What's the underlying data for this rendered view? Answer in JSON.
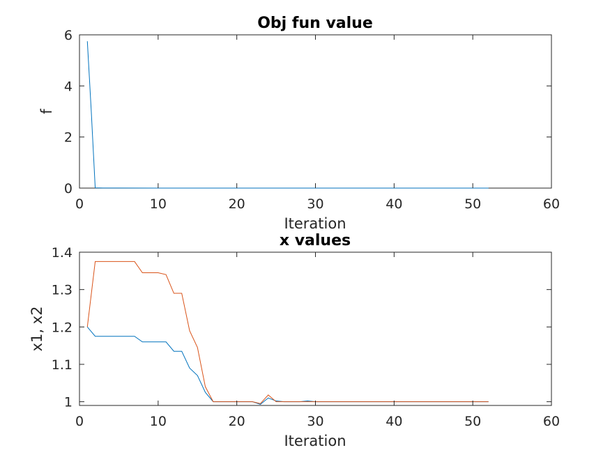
{
  "chart_data": [
    {
      "type": "line",
      "title": "Obj fun value",
      "xlabel": "Iteration",
      "ylabel": "f",
      "xlim": [
        0,
        60
      ],
      "ylim": [
        0,
        6
      ],
      "xticks": [
        "0",
        "10",
        "20",
        "30",
        "40",
        "50",
        "60"
      ],
      "yticks": [
        "0",
        "2",
        "4",
        "6"
      ],
      "grid": false,
      "series": [
        {
          "color": "#0072BD",
          "x": [
            1,
            1.5,
            2,
            3,
            5,
            10,
            20,
            30,
            40,
            52
          ],
          "y": [
            5.75,
            3.0,
            0.01,
            0.005,
            0.002,
            0.0,
            0.0,
            0.0,
            0.0,
            0.0
          ]
        }
      ]
    },
    {
      "type": "line",
      "title": "x values",
      "xlabel": "Iteration",
      "ylabel": "x1, x2",
      "xlim": [
        0,
        60
      ],
      "ylim": [
        0.99,
        1.4
      ],
      "xticks": [
        "0",
        "10",
        "20",
        "30",
        "40",
        "50",
        "60"
      ],
      "yticks": [
        "1",
        "1.1",
        "1.2",
        "1.3",
        "1.4"
      ],
      "grid": false,
      "series": [
        {
          "color": "#0072BD",
          "x": [
            1,
            2,
            3,
            4,
            5,
            6,
            7,
            8,
            9,
            10,
            11,
            12,
            13,
            14,
            15,
            16,
            17,
            18,
            19,
            20,
            21,
            22,
            23,
            24,
            25,
            26,
            27,
            28,
            29,
            30,
            31,
            52
          ],
          "y": [
            1.2,
            1.175,
            1.175,
            1.175,
            1.175,
            1.175,
            1.175,
            1.16,
            1.16,
            1.16,
            1.16,
            1.135,
            1.135,
            1.09,
            1.07,
            1.025,
            1.0,
            1.0,
            1.0,
            1.0,
            1.0,
            1.0,
            0.993,
            1.01,
            1.002,
            1.0,
            1.0,
            1.0,
            1.002,
            1.0,
            1.0,
            1.0
          ]
        },
        {
          "color": "#D95319",
          "x": [
            1,
            2,
            3,
            4,
            5,
            6,
            7,
            8,
            9,
            10,
            11,
            12,
            13,
            14,
            15,
            16,
            17,
            18,
            19,
            20,
            21,
            22,
            23,
            24,
            25,
            26,
            27,
            28,
            29,
            30,
            31,
            52
          ],
          "y": [
            1.2,
            1.375,
            1.375,
            1.375,
            1.375,
            1.375,
            1.375,
            1.345,
            1.345,
            1.345,
            1.34,
            1.29,
            1.29,
            1.19,
            1.145,
            1.04,
            1.0,
            1.0,
            1.0,
            1.0,
            1.0,
            1.0,
            0.995,
            1.018,
            1.0,
            1.0,
            1.0,
            1.0,
            1.0,
            1.0,
            1.0,
            1.0
          ]
        }
      ]
    }
  ]
}
